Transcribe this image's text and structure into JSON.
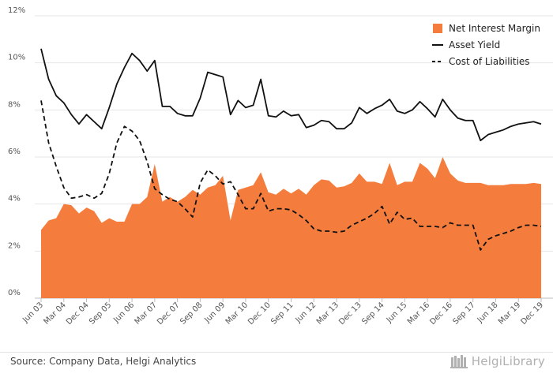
{
  "chart_data": {
    "type": "area",
    "title": "",
    "xlabel": "",
    "ylabel": "",
    "ylim": [
      0,
      12
    ],
    "y_ticks": [
      "0%",
      "2%",
      "4%",
      "6%",
      "8%",
      "10%",
      "12%"
    ],
    "x_tick_labels": [
      "Jun 03",
      "Mar 04",
      "Dec 04",
      "Sep 05",
      "Jun 06",
      "Mar 07",
      "Dec 07",
      "Sep 08",
      "Jun 09",
      "Mar 10",
      "Dec 10",
      "Sep 11",
      "Jun 12",
      "Mar 13",
      "Dec 13",
      "Sep 14",
      "Jun 15",
      "Mar 16",
      "Dec 16",
      "Sep 17",
      "Jun 18",
      "Mar 19",
      "Dec 19"
    ],
    "x_start": "Jun 03",
    "x_end": "Dec 19",
    "grid": true,
    "legend_position": "top-right",
    "series": [
      {
        "name": "Net Interest Margin",
        "style": "area",
        "color": "#f47c3c",
        "values": [
          2.9,
          3.3,
          3.4,
          4.0,
          3.95,
          3.6,
          3.85,
          3.7,
          3.2,
          3.4,
          3.25,
          3.25,
          4.0,
          4.0,
          4.3,
          5.7,
          4.1,
          4.3,
          4.1,
          4.3,
          4.6,
          4.4,
          4.7,
          4.8,
          5.2,
          3.3,
          4.6,
          4.7,
          4.8,
          5.35,
          4.5,
          4.4,
          4.65,
          4.45,
          4.65,
          4.4,
          4.8,
          5.05,
          5.0,
          4.7,
          4.75,
          4.9,
          5.3,
          4.95,
          4.95,
          4.85,
          5.75,
          4.8,
          4.95,
          4.95,
          5.75,
          5.5,
          5.1,
          6.0,
          5.3,
          5.0,
          4.9,
          4.9,
          4.9,
          4.8,
          4.8,
          4.8,
          4.85,
          4.85,
          4.85,
          4.9,
          4.85
        ]
      },
      {
        "name": "Asset Yield",
        "style": "line",
        "color": "#111111",
        "values": [
          10.6,
          9.3,
          8.6,
          8.3,
          7.8,
          7.4,
          7.8,
          7.5,
          7.2,
          8.1,
          9.1,
          9.8,
          10.4,
          10.1,
          9.65,
          10.1,
          8.15,
          8.15,
          7.85,
          7.75,
          7.75,
          8.5,
          9.6,
          9.5,
          9.4,
          7.8,
          8.4,
          8.1,
          8.2,
          9.3,
          7.75,
          7.7,
          7.95,
          7.75,
          7.8,
          7.25,
          7.35,
          7.55,
          7.5,
          7.2,
          7.2,
          7.45,
          8.1,
          7.85,
          8.05,
          8.2,
          8.45,
          7.95,
          7.85,
          8.0,
          8.35,
          8.05,
          7.7,
          8.45,
          8.0,
          7.65,
          7.55,
          7.55,
          6.7,
          6.95,
          7.05,
          7.15,
          7.3,
          7.4,
          7.45,
          7.5,
          7.4
        ]
      },
      {
        "name": "Cost of Liabilities",
        "style": "dashed",
        "color": "#111111",
        "values": [
          8.4,
          6.6,
          5.6,
          4.7,
          4.25,
          4.3,
          4.4,
          4.25,
          4.45,
          5.3,
          6.6,
          7.3,
          7.1,
          6.7,
          5.8,
          4.65,
          4.4,
          4.2,
          4.1,
          3.8,
          3.45,
          4.9,
          5.45,
          5.2,
          4.85,
          4.95,
          4.4,
          3.8,
          3.8,
          4.45,
          3.7,
          3.8,
          3.8,
          3.75,
          3.55,
          3.3,
          2.95,
          2.85,
          2.85,
          2.8,
          2.85,
          3.1,
          3.25,
          3.4,
          3.6,
          3.9,
          3.15,
          3.65,
          3.35,
          3.4,
          3.05,
          3.05,
          3.05,
          3.0,
          3.2,
          3.1,
          3.1,
          3.1,
          2.05,
          2.5,
          2.65,
          2.75,
          2.85,
          3.0,
          3.1,
          3.1,
          3.05
        ]
      }
    ]
  },
  "footer": {
    "source": "Source: Company Data, Helgi Analytics",
    "brand": "HelgiLibrary"
  }
}
